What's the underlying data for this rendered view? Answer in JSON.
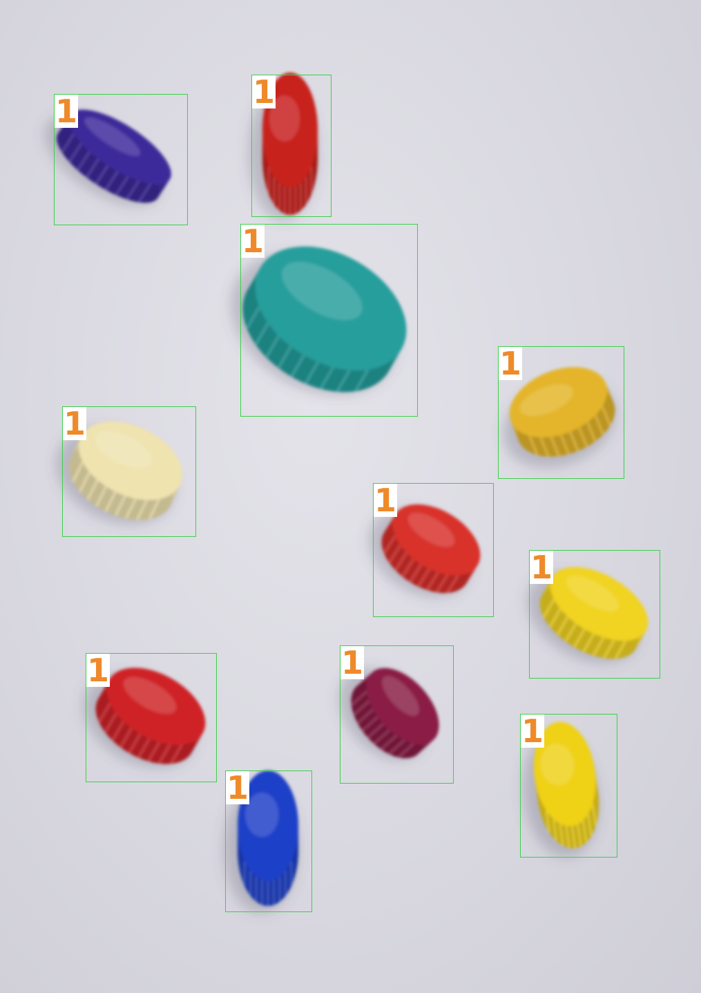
{
  "scene": {
    "description_free": true,
    "background_color": "#dcdbe2"
  },
  "detection": {
    "box_color": "#3ccf4a",
    "label_color": "#ee8a2a",
    "label_bg": "#ffffff"
  },
  "objects": [
    {
      "label": "1",
      "color": "#3d2a9a",
      "icon": "bottle-cap"
    },
    {
      "label": "1",
      "color": "#c8201f",
      "icon": "bottle-cap"
    },
    {
      "label": "1",
      "color": "#259e9c",
      "icon": "bottle-cap"
    },
    {
      "label": "1",
      "color": "#e4b52a",
      "icon": "bottle-cap"
    },
    {
      "label": "1",
      "color": "#efe3b0",
      "icon": "bottle-cap"
    },
    {
      "label": "1",
      "color": "#d8302c",
      "icon": "bottle-cap"
    },
    {
      "label": "1",
      "color": "#f1d320",
      "icon": "bottle-cap"
    },
    {
      "label": "1",
      "color": "#cf2428",
      "icon": "bottle-cap"
    },
    {
      "label": "1",
      "color": "#8a1f45",
      "icon": "bottle-cap"
    },
    {
      "label": "1",
      "color": "#efd118",
      "icon": "bottle-cap"
    },
    {
      "label": "1",
      "color": "#1f3fc7",
      "icon": "bottle-cap"
    }
  ]
}
